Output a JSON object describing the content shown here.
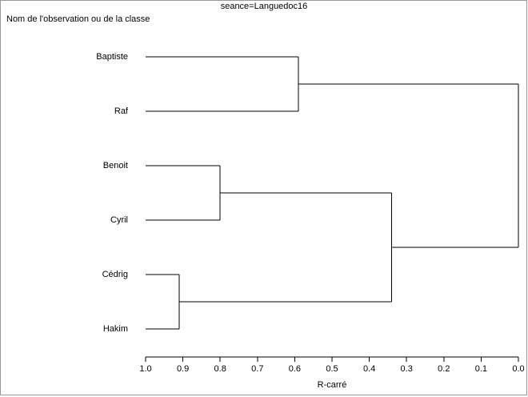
{
  "chart_data": {
    "type": "dendrogram",
    "title": "seance=Languedoc16",
    "ylabel": "Nom de l'observation ou de la classe",
    "xlabel": "R-carré",
    "xlim": [
      1,
      0
    ],
    "xticks": [
      {
        "value": 1,
        "label": "1.0"
      },
      0.9,
      0.8,
      0.7,
      0.6,
      0.5,
      0.4,
      0.3,
      0.2,
      0.1,
      {
        "value": 0,
        "label": "0.0"
      }
    ],
    "color": "#000000",
    "tree": {
      "value": 0,
      "children": [
        {
          "value": 0.59,
          "children": [
            "Baptiste",
            "Raf"
          ]
        },
        {
          "value": 0.34,
          "children": [
            {
              "value": 0.8,
              "children": [
                "Benoit",
                "Cyril"
              ]
            },
            {
              "value": 0.91,
              "children": [
                "Cédrig",
                "Hakim"
              ]
            }
          ]
        }
      ]
    }
  }
}
